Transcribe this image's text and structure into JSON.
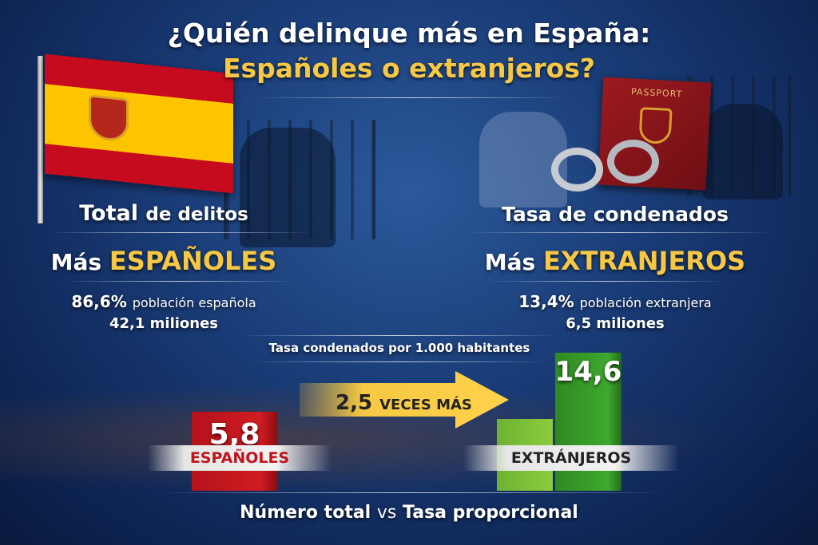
{
  "title": {
    "line1": "¿Quién delinque más en España:",
    "line2": "Españoles o extranjeros?"
  },
  "left": {
    "heading_bold": "Total",
    "heading_rest": "de delitos",
    "verdict_prefix": "Más",
    "verdict_highlight": "ESPAÑOLES",
    "stat_pct": "86,6%",
    "stat_pct_label": "población española",
    "stat_count": "42,1 miliones"
  },
  "right": {
    "heading": "Tasa de condenados",
    "verdict_prefix": "Más",
    "verdict_highlight": "EXTRANJEROS",
    "stat_pct": "13,4%",
    "stat_pct_label": "población extranjera",
    "stat_count": "6,5 miliones",
    "passport_text": "PASSPORT"
  },
  "arrow": {
    "number": "2,5",
    "text": "VECES MÁS"
  },
  "footer": {
    "part1": "Número total",
    "vs": "vs",
    "part2": "Tasa proporcional"
  },
  "colors": {
    "accent": "#f7c843",
    "espanoles": "#c0141a",
    "extranjeros": "#3a9a2a",
    "extranjeros_light": "#7dc13a"
  },
  "chart_data": {
    "type": "bar",
    "title": "Tasa condenados por 1.000 habitantes",
    "categories": [
      "ESPAÑOLES",
      "EXTRÁNJEROS"
    ],
    "values": [
      5.8,
      14.6
    ],
    "value_labels": [
      "5,8",
      "14,6"
    ],
    "xlabel": "",
    "ylabel": "",
    "ylim": [
      0,
      15
    ]
  }
}
